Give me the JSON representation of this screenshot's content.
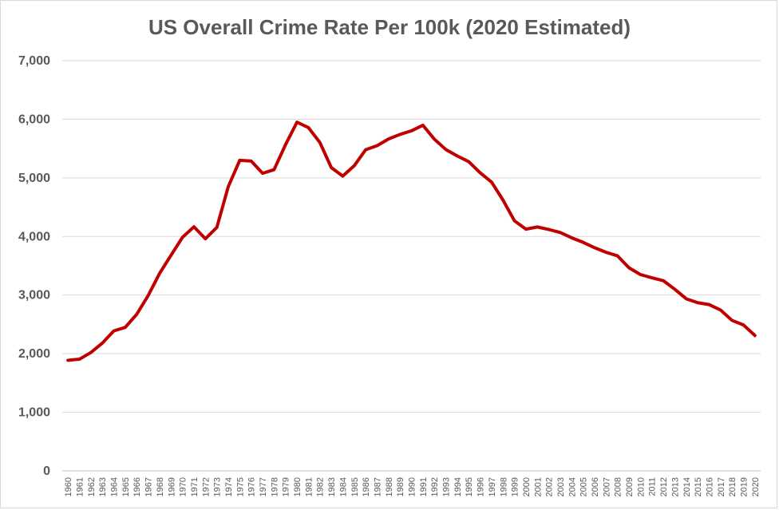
{
  "chart_data": {
    "type": "line",
    "title": "US Overall Crime Rate Per 100k (2020 Estimated)",
    "xlabel": "",
    "ylabel": "",
    "ylim": [
      0,
      7000
    ],
    "y_ticks": [
      "0",
      "1,000",
      "2,000",
      "3,000",
      "4,000",
      "5,000",
      "6,000",
      "7,000"
    ],
    "grid": "horizontal",
    "legend": "none",
    "line_color": "#C00000",
    "categories": [
      "1960",
      "1961",
      "1962",
      "1963",
      "1964",
      "1965",
      "1966",
      "1967",
      "1968",
      "1969",
      "1970",
      "1971",
      "1972",
      "1973",
      "1974",
      "1975",
      "1976",
      "1977",
      "1978",
      "1979",
      "1980",
      "1981",
      "1982",
      "1983",
      "1984",
      "1985",
      "1986",
      "1987",
      "1988",
      "1989",
      "1990",
      "1991",
      "1992",
      "1993",
      "1994",
      "1995",
      "1996",
      "1997",
      "1998",
      "1999",
      "2000",
      "2001",
      "2002",
      "2003",
      "2004",
      "2005",
      "2006",
      "2007",
      "2008",
      "2009",
      "2010",
      "2011",
      "2012",
      "2013",
      "2014",
      "2015",
      "2016",
      "2017",
      "2018",
      "2019",
      "2020"
    ],
    "series": [
      {
        "values": [
          1887,
          1906,
          2020,
          2180,
          2388,
          2449,
          2671,
          2990,
          3370,
          3680,
          3985,
          4165,
          3961,
          4154,
          4850,
          5299,
          5287,
          5078,
          5140,
          5566,
          5950,
          5858,
          5604,
          5175,
          5031,
          5207,
          5480,
          5550,
          5664,
          5741,
          5803,
          5898,
          5660,
          5484,
          5374,
          5276,
          5087,
          4927,
          4620,
          4267,
          4125,
          4162,
          4119,
          4067,
          3977,
          3900,
          3808,
          3730,
          3669,
          3466,
          3350,
          3295,
          3246,
          3099,
          2937,
          2870,
          2838,
          2745,
          2568,
          2490,
          2310
        ]
      }
    ]
  }
}
